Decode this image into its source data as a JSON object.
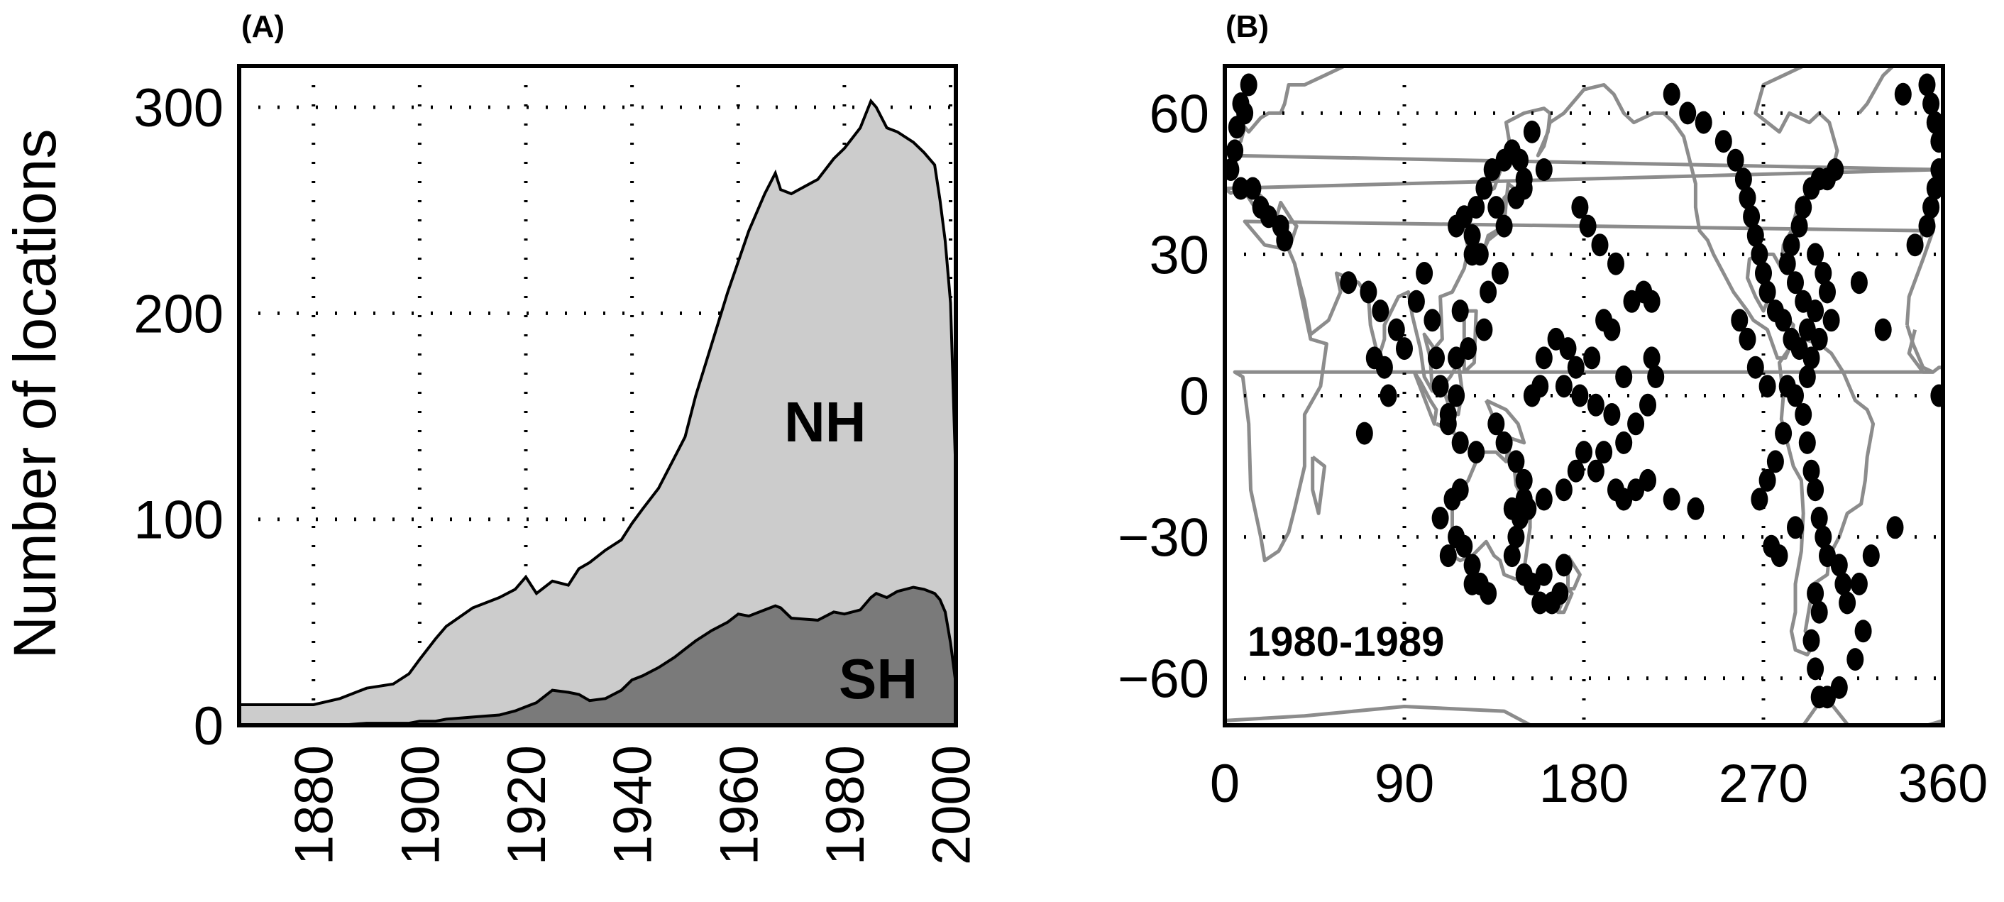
{
  "colors": {
    "nh_fill": "#cccccc",
    "sh_fill": "#7a7a7a",
    "line": "#000000",
    "coast": "#8c8c8c",
    "points": "#000000"
  },
  "chart_data": [
    {
      "panel": "(A)",
      "type": "area",
      "ylabel": "Number of locations",
      "xlim": [
        1866,
        2001
      ],
      "ylim": [
        0,
        320
      ],
      "xticks": [
        "1880",
        "1900",
        "1920",
        "1940",
        "1960",
        "1980",
        "2000"
      ],
      "yticks": [
        "0",
        "100",
        "200",
        "300"
      ],
      "grid": true,
      "annotations": [
        "NH",
        "SH"
      ],
      "x": [
        1866,
        1870,
        1875,
        1880,
        1885,
        1890,
        1895,
        1898,
        1900,
        1903,
        1905,
        1910,
        1915,
        1918,
        1920,
        1922,
        1925,
        1928,
        1930,
        1932,
        1935,
        1938,
        1940,
        1942,
        1945,
        1948,
        1950,
        1952,
        1955,
        1958,
        1960,
        1962,
        1965,
        1967,
        1968,
        1970,
        1975,
        1978,
        1980,
        1983,
        1985,
        1986,
        1988,
        1990,
        1993,
        1995,
        1997,
        1998,
        1999,
        2000,
        2001
      ],
      "series": [
        {
          "name": "NH",
          "values": [
            10,
            10,
            10,
            10,
            13,
            18,
            20,
            25,
            32,
            42,
            48,
            57,
            62,
            66,
            72,
            64,
            70,
            68,
            76,
            79,
            85,
            90,
            98,
            105,
            115,
            130,
            140,
            160,
            185,
            210,
            225,
            240,
            258,
            268,
            260,
            258,
            265,
            275,
            280,
            290,
            303,
            300,
            290,
            288,
            283,
            278,
            272,
            255,
            235,
            205,
            120
          ]
        },
        {
          "name": "SH",
          "values": [
            0,
            0,
            0,
            0,
            0,
            1,
            1,
            1,
            2,
            2,
            3,
            4,
            5,
            7,
            9,
            11,
            17,
            16,
            15,
            12,
            13,
            17,
            22,
            24,
            28,
            33,
            37,
            41,
            46,
            50,
            54,
            53,
            56,
            58,
            57,
            52,
            51,
            55,
            54,
            56,
            62,
            64,
            62,
            65,
            67,
            66,
            64,
            61,
            55,
            40,
            20
          ]
        }
      ]
    },
    {
      "panel": "(B)",
      "type": "scatter",
      "annotation": "1980-1989",
      "xlim": [
        0,
        360
      ],
      "ylim": [
        -70,
        70
      ],
      "xticks": [
        "0",
        "90",
        "180",
        "270",
        "360"
      ],
      "yticks": [
        "60",
        "30",
        "0",
        "−30",
        "−60"
      ],
      "grid": true,
      "points": [
        [
          8,
          62
        ],
        [
          10,
          60
        ],
        [
          6,
          57
        ],
        [
          12,
          66
        ],
        [
          5,
          52
        ],
        [
          3,
          48
        ],
        [
          8,
          44
        ],
        [
          14,
          44
        ],
        [
          22,
          38
        ],
        [
          30,
          33
        ],
        [
          18,
          40
        ],
        [
          28,
          36
        ],
        [
          62,
          24
        ],
        [
          72,
          22
        ],
        [
          78,
          18
        ],
        [
          86,
          14
        ],
        [
          80,
          6
        ],
        [
          82,
          0
        ],
        [
          70,
          -8
        ],
        [
          75,
          8
        ],
        [
          90,
          10
        ],
        [
          96,
          20
        ],
        [
          100,
          26
        ],
        [
          104,
          16
        ],
        [
          106,
          8
        ],
        [
          108,
          2
        ],
        [
          112,
          -4
        ],
        [
          118,
          -10
        ],
        [
          122,
          10
        ],
        [
          130,
          14
        ],
        [
          132,
          22
        ],
        [
          138,
          26
        ],
        [
          128,
          30
        ],
        [
          116,
          36
        ],
        [
          120,
          38
        ],
        [
          124,
          34
        ],
        [
          126,
          40
        ],
        [
          130,
          44
        ],
        [
          136,
          40
        ],
        [
          140,
          36
        ],
        [
          146,
          42
        ],
        [
          150,
          44
        ],
        [
          134,
          48
        ],
        [
          140,
          50
        ],
        [
          144,
          52
        ],
        [
          148,
          50
        ],
        [
          154,
          56
        ],
        [
          124,
          30
        ],
        [
          118,
          18
        ],
        [
          116,
          8
        ],
        [
          116,
          0
        ],
        [
          112,
          -6
        ],
        [
          126,
          -12
        ],
        [
          136,
          -6
        ],
        [
          140,
          -10
        ],
        [
          146,
          -14
        ],
        [
          150,
          -18
        ],
        [
          150,
          -22
        ],
        [
          148,
          -26
        ],
        [
          146,
          -30
        ],
        [
          144,
          -34
        ],
        [
          150,
          -38
        ],
        [
          154,
          -40
        ],
        [
          158,
          -44
        ],
        [
          160,
          -38
        ],
        [
          164,
          -44
        ],
        [
          168,
          -42
        ],
        [
          170,
          -36
        ],
        [
          116,
          -30
        ],
        [
          112,
          -34
        ],
        [
          108,
          -26
        ],
        [
          114,
          -22
        ],
        [
          118,
          -20
        ],
        [
          124,
          -36
        ],
        [
          128,
          -40
        ],
        [
          132,
          -42
        ],
        [
          124,
          -40
        ],
        [
          120,
          -32
        ],
        [
          144,
          -24
        ],
        [
          152,
          -24
        ],
        [
          160,
          -22
        ],
        [
          170,
          -20
        ],
        [
          176,
          -16
        ],
        [
          180,
          -12
        ],
        [
          186,
          -16
        ],
        [
          190,
          -12
        ],
        [
          196,
          -20
        ],
        [
          200,
          -22
        ],
        [
          206,
          -20
        ],
        [
          212,
          -18
        ],
        [
          224,
          -22
        ],
        [
          236,
          -24
        ],
        [
          200,
          -10
        ],
        [
          206,
          -6
        ],
        [
          212,
          -2
        ],
        [
          216,
          4
        ],
        [
          214,
          8
        ],
        [
          200,
          4
        ],
        [
          194,
          14
        ],
        [
          190,
          16
        ],
        [
          184,
          8
        ],
        [
          176,
          6
        ],
        [
          172,
          10
        ],
        [
          166,
          12
        ],
        [
          160,
          8
        ],
        [
          158,
          2
        ],
        [
          154,
          0
        ],
        [
          170,
          2
        ],
        [
          178,
          0
        ],
        [
          186,
          -2
        ],
        [
          194,
          -4
        ],
        [
          204,
          20
        ],
        [
          210,
          22
        ],
        [
          214,
          20
        ],
        [
          196,
          28
        ],
        [
          188,
          32
        ],
        [
          182,
          36
        ],
        [
          178,
          40
        ],
        [
          160,
          48
        ],
        [
          150,
          46
        ],
        [
          232,
          60
        ],
        [
          224,
          64
        ],
        [
          240,
          58
        ],
        [
          250,
          54
        ],
        [
          256,
          50
        ],
        [
          260,
          46
        ],
        [
          262,
          42
        ],
        [
          264,
          38
        ],
        [
          266,
          34
        ],
        [
          268,
          30
        ],
        [
          270,
          26
        ],
        [
          272,
          22
        ],
        [
          276,
          18
        ],
        [
          280,
          16
        ],
        [
          284,
          12
        ],
        [
          288,
          10
        ],
        [
          294,
          8
        ],
        [
          298,
          12
        ],
        [
          304,
          16
        ],
        [
          290,
          20
        ],
        [
          286,
          24
        ],
        [
          282,
          28
        ],
        [
          284,
          32
        ],
        [
          288,
          36
        ],
        [
          290,
          40
        ],
        [
          294,
          44
        ],
        [
          298,
          46
        ],
        [
          302,
          46
        ],
        [
          306,
          48
        ],
        [
          296,
          30
        ],
        [
          300,
          26
        ],
        [
          302,
          22
        ],
        [
          296,
          18
        ],
        [
          292,
          14
        ],
        [
          292,
          4
        ],
        [
          290,
          -4
        ],
        [
          292,
          -10
        ],
        [
          294,
          -16
        ],
        [
          296,
          -20
        ],
        [
          298,
          -26
        ],
        [
          300,
          -30
        ],
        [
          302,
          -34
        ],
        [
          308,
          -36
        ],
        [
          310,
          -40
        ],
        [
          312,
          -44
        ],
        [
          318,
          -40
        ],
        [
          324,
          -34
        ],
        [
          336,
          -28
        ],
        [
          296,
          -42
        ],
        [
          298,
          -46
        ],
        [
          294,
          -52
        ],
        [
          296,
          -58
        ],
        [
          298,
          -64
        ],
        [
          302,
          -64
        ],
        [
          308,
          -62
        ],
        [
          316,
          -56
        ],
        [
          320,
          -50
        ],
        [
          280,
          -8
        ],
        [
          276,
          -14
        ],
        [
          272,
          -18
        ],
        [
          268,
          -22
        ],
        [
          274,
          -32
        ],
        [
          278,
          -34
        ],
        [
          286,
          -28
        ],
        [
          346,
          32
        ],
        [
          352,
          36
        ],
        [
          354,
          40
        ],
        [
          356,
          44
        ],
        [
          358,
          48
        ],
        [
          358,
          54
        ],
        [
          356,
          58
        ],
        [
          354,
          62
        ],
        [
          352,
          66
        ],
        [
          340,
          64
        ],
        [
          358,
          0
        ],
        [
          318,
          24
        ],
        [
          330,
          14
        ],
        [
          262,
          12
        ],
        [
          258,
          16
        ],
        [
          266,
          6
        ],
        [
          272,
          2
        ],
        [
          282,
          2
        ],
        [
          286,
          0
        ]
      ]
    }
  ]
}
